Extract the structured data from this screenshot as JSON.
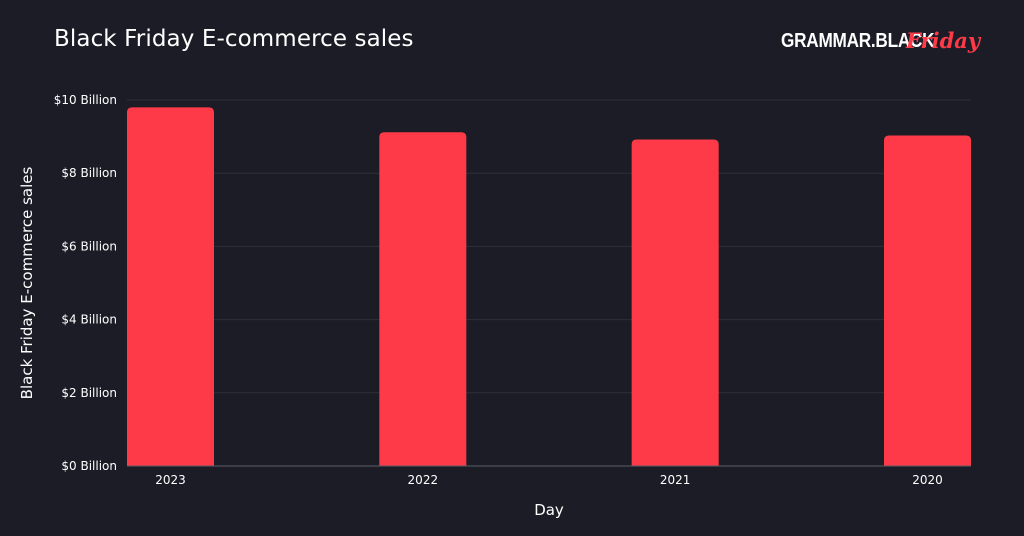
{
  "header": {
    "title": "Black Friday E-commerce sales",
    "logo_main": "GRAMMAR.BLACK",
    "logo_accent": "Friday"
  },
  "colors": {
    "background": "#1b1c26",
    "bar": "#ff3a48",
    "grid": "#2e2f3a",
    "axis": "#5a5b66",
    "text": "#ffffff"
  },
  "chart_data": {
    "type": "bar",
    "title": "Black Friday E-commerce sales",
    "xlabel": "Day",
    "ylabel": "Black Friday E-commerce sales",
    "categories": [
      "2023",
      "2022",
      "2021",
      "2020"
    ],
    "values": [
      9.8,
      9.12,
      8.92,
      9.03
    ],
    "value_unit": "Billion USD",
    "ylim": [
      0,
      10
    ],
    "yticks": [
      0,
      2,
      4,
      6,
      8,
      10
    ],
    "ytick_labels": [
      "$0 Billion",
      "$2 Billion",
      "$4 Billion",
      "$6 Billion",
      "$8 Billion",
      "$10 Billion"
    ],
    "grid": true,
    "legend": "none"
  }
}
